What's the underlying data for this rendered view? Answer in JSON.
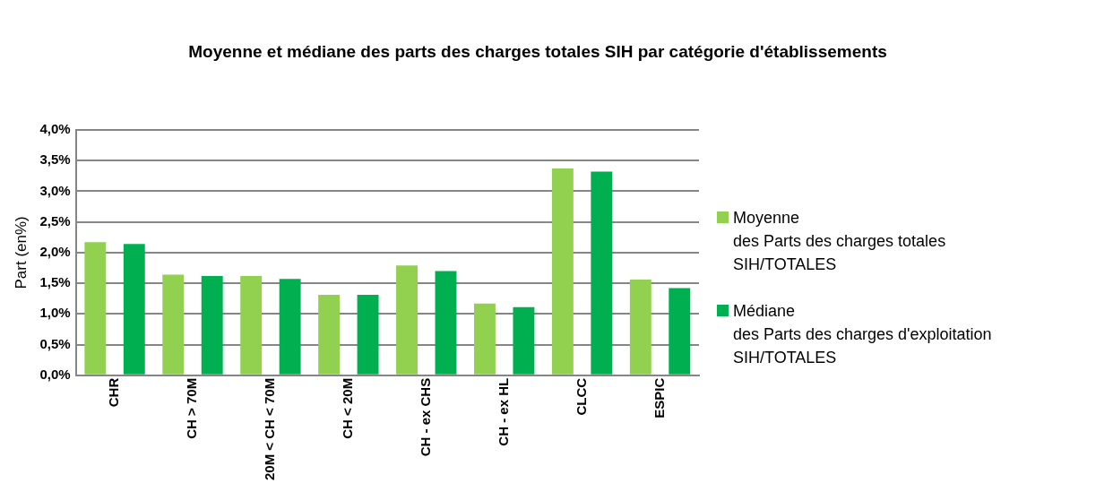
{
  "chart_data": {
    "type": "bar",
    "title": "Moyenne et médiane des parts des charges totales SIH par catégorie d'établissements",
    "ylabel": "Part (en%)",
    "categories": [
      "CHR",
      "CH > 70M",
      "20M < CH < 70M",
      "CH < 20M",
      "CH - ex CHS",
      "CH - ex HL",
      "CLCC",
      "ESPIC"
    ],
    "series": [
      {
        "name": "Moyenne\ndes Parts des charges totales\nSIH/TOTALES",
        "color": "#92d050",
        "values": [
          2.17,
          1.64,
          1.62,
          1.31,
          1.79,
          1.17,
          3.37,
          1.56
        ]
      },
      {
        "name": "Médiane\ndes Parts des charges d'exploitation\nSIH/TOTALES",
        "color": "#00b050",
        "values": [
          2.14,
          1.62,
          1.57,
          1.31,
          1.7,
          1.11,
          3.32,
          1.42
        ]
      }
    ],
    "ylim": [
      0,
      4
    ],
    "yticks": [
      {
        "value": 0,
        "label": "0,0%"
      },
      {
        "value": 0.5,
        "label": "0,5%"
      },
      {
        "value": 1,
        "label": "1,0%"
      },
      {
        "value": 1.5,
        "label": "1,5%"
      },
      {
        "value": 2,
        "label": "2,0%"
      },
      {
        "value": 2.5,
        "label": "2,5%"
      },
      {
        "value": 3,
        "label": "3,0%"
      },
      {
        "value": 3.5,
        "label": "3,5%"
      },
      {
        "value": 4,
        "label": "4,0%"
      }
    ],
    "grid": "y",
    "legend": "right"
  }
}
